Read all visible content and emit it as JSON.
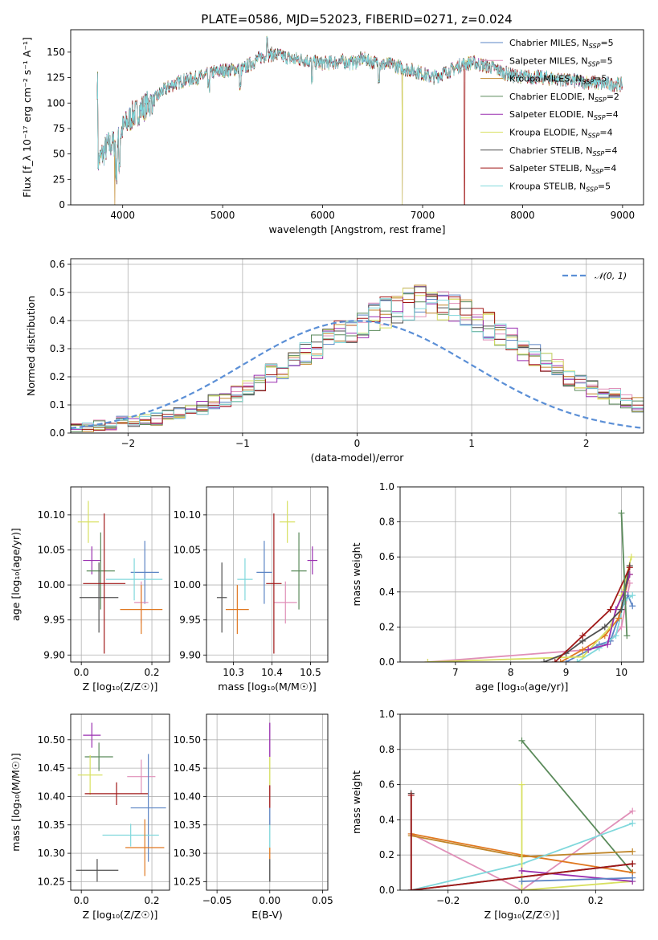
{
  "title": "PLATE=0586, MJD=52023, FIBERID=0271, z=0.024",
  "colors": {
    "Chabrier MILES": "#5b84c4",
    "Salpeter MILES": "#e08fb8",
    "Kroupa MILES": "#c0862a",
    "Chabrier ELODIE": "#5a8a5a",
    "Salpeter ELODIE": "#9a2fb0",
    "Kroupa ELODIE": "#d8e060",
    "Chabrier STELIB": "#505050",
    "Salpeter STELIB": "#a01818",
    "Kroupa STELIB": "#80d8dc",
    "extra_orange": "#e07820",
    "gaussian": "#5b8fd6"
  },
  "chart_data": [
    {
      "id": "spectrum",
      "type": "line",
      "xlabel": "wavelength [Angstrom, rest frame]",
      "ylabel": "Flux [f_λ 10⁻¹⁷ erg cm⁻² s⁻¹ A⁻¹]",
      "xlim": [
        3480,
        9210
      ],
      "ylim": [
        0,
        172
      ],
      "xticks": [
        4000,
        5000,
        6000,
        7000,
        8000,
        9000
      ],
      "yticks": [
        0,
        25,
        50,
        75,
        100,
        125,
        150
      ],
      "legend_position": "top-right",
      "continuum": [
        [
          3750,
          42
        ],
        [
          3850,
          58
        ],
        [
          3950,
          62
        ],
        [
          4000,
          75
        ],
        [
          4100,
          88
        ],
        [
          4200,
          95
        ],
        [
          4300,
          102
        ],
        [
          4400,
          112
        ],
        [
          4500,
          118
        ],
        [
          4600,
          122
        ],
        [
          4800,
          126
        ],
        [
          4900,
          130
        ],
        [
          5000,
          132
        ],
        [
          5100,
          133
        ],
        [
          5200,
          133
        ],
        [
          5300,
          140
        ],
        [
          5400,
          146
        ],
        [
          5500,
          148
        ],
        [
          5600,
          146
        ],
        [
          5700,
          143
        ],
        [
          5800,
          143
        ],
        [
          5900,
          140
        ],
        [
          6000,
          139
        ],
        [
          6100,
          140
        ],
        [
          6200,
          141
        ],
        [
          6300,
          139
        ],
        [
          6400,
          144
        ],
        [
          6500,
          140
        ],
        [
          6600,
          138
        ],
        [
          6700,
          138
        ],
        [
          6800,
          134
        ],
        [
          6900,
          132
        ],
        [
          7000,
          129
        ],
        [
          7100,
          125
        ],
        [
          7200,
          129
        ],
        [
          7300,
          133
        ],
        [
          7400,
          138
        ],
        [
          7500,
          140
        ],
        [
          7600,
          137
        ],
        [
          7700,
          135
        ],
        [
          7800,
          130
        ],
        [
          7900,
          127
        ],
        [
          8000,
          126
        ],
        [
          8200,
          125
        ],
        [
          8400,
          123
        ],
        [
          8600,
          121
        ],
        [
          8800,
          119
        ],
        [
          9000,
          118
        ]
      ],
      "series": [
        {
          "name": "Chabrier MILES, N_SSP=5",
          "label_main": "Chabrier MILES, N",
          "label_sub": "SSP",
          "label_tail": "=5"
        },
        {
          "name": "Salpeter MILES, N_SSP=5",
          "label_main": "Salpeter MILES, N",
          "label_sub": "SSP",
          "label_tail": "=5"
        },
        {
          "name": "Kroupa MILES, N_SSP=5",
          "label_main": "Kroupa MILES, N",
          "label_sub": "SSP",
          "label_tail": "=5"
        },
        {
          "name": "Chabrier ELODIE, N_SSP=2",
          "label_main": "Chabrier ELODIE, N",
          "label_sub": "SSP",
          "label_tail": "=2"
        },
        {
          "name": "Salpeter ELODIE, N_SSP=4",
          "label_main": "Salpeter ELODIE, N",
          "label_sub": "SSP",
          "label_tail": "=4"
        },
        {
          "name": "Kroupa ELODIE, N_SSP=4",
          "label_main": "Kroupa ELODIE, N",
          "label_sub": "SSP",
          "label_tail": "=4"
        },
        {
          "name": "Chabrier STELIB, N_SSP=4",
          "label_main": "Chabrier STELIB, N",
          "label_sub": "SSP",
          "label_tail": "=4"
        },
        {
          "name": "Salpeter STELIB, N_SSP=4",
          "label_main": "Salpeter STELIB, N",
          "label_sub": "SSP",
          "label_tail": "=4"
        },
        {
          "name": "Kroupa STELIB, N_SSP=5",
          "label_main": "Kroupa STELIB, N",
          "label_sub": "SSP",
          "label_tail": "=5"
        }
      ]
    },
    {
      "id": "residuals",
      "type": "histogram",
      "xlabel": "(data-model)/error",
      "ylabel": "Normed distribution",
      "xlim": [
        -2.5,
        2.5
      ],
      "ylim": [
        0,
        0.62
      ],
      "xticks": [
        -2,
        -1,
        0,
        1,
        2
      ],
      "yticks": [
        0.0,
        0.1,
        0.2,
        0.3,
        0.4,
        0.5,
        0.6
      ],
      "grid": true,
      "legend": "𝒩(0, 1)",
      "legend_position": "top-right",
      "bin_width": 0.1,
      "bin_start": -2.5,
      "base": [
        0.02,
        0.02,
        0.03,
        0.03,
        0.04,
        0.04,
        0.05,
        0.05,
        0.06,
        0.07,
        0.08,
        0.09,
        0.11,
        0.12,
        0.14,
        0.16,
        0.18,
        0.21,
        0.23,
        0.26,
        0.28,
        0.31,
        0.33,
        0.35,
        0.37,
        0.39,
        0.41,
        0.43,
        0.44,
        0.46,
        0.47,
        0.46,
        0.45,
        0.44,
        0.42,
        0.4,
        0.38,
        0.36,
        0.33,
        0.3,
        0.28,
        0.25,
        0.23,
        0.2,
        0.18,
        0.16,
        0.14,
        0.13,
        0.11,
        0.1,
        0.09,
        0.08,
        0.07,
        0.06,
        0.05,
        0.05,
        0.04,
        0.04,
        0.03,
        0.03,
        0.03,
        0.03
      ]
    },
    {
      "id": "age-vs-Z",
      "type": "errorbar",
      "xlabel": "Z [log₁₀(Z/Z☉)]",
      "ylabel": "age  [log₁₀(age/yr)]",
      "xlim": [
        -0.03,
        0.25
      ],
      "ylim": [
        9.89,
        10.14
      ],
      "xticks": [
        0.0,
        0.2
      ],
      "yticks": [
        9.9,
        9.95,
        10.0,
        10.05,
        10.1
      ],
      "grid": true,
      "points": [
        {
          "s": "Chabrier MILES",
          "x": 0.18,
          "y": 10.018,
          "ex": 0.04,
          "ey": 0.045
        },
        {
          "s": "Salpeter MILES",
          "x": 0.17,
          "y": 9.975,
          "ex": 0.02,
          "ey": 0.03
        },
        {
          "s": "extra_orange",
          "x": 0.17,
          "y": 9.965,
          "ex": 0.06,
          "ey": 0.035
        },
        {
          "s": "Kroupa STELIB",
          "x": 0.15,
          "y": 10.008,
          "ex": 0.08,
          "ey": 0.03
        },
        {
          "s": "Kroupa ELODIE",
          "x": 0.02,
          "y": 10.09,
          "ex": 0.03,
          "ey": 0.03
        },
        {
          "s": "Salpeter ELODIE",
          "x": 0.03,
          "y": 10.035,
          "ex": 0.025,
          "ey": 0.02
        },
        {
          "s": "Chabrier ELODIE",
          "x": 0.055,
          "y": 10.02,
          "ex": 0.04,
          "ey": 0.055
        },
        {
          "s": "Chabrier STELIB",
          "x": 0.05,
          "y": 9.982,
          "ex": 0.055,
          "ey": 0.05
        },
        {
          "s": "Salpeter STELIB",
          "x": 0.065,
          "y": 10.002,
          "ex": 0.06,
          "ey": 0.1
        }
      ]
    },
    {
      "id": "age-vs-mass",
      "type": "errorbar",
      "xlabel": "mass [log₁₀(M/M☉)]",
      "ylabel": "",
      "xlim": [
        10.23,
        10.545
      ],
      "ylim": [
        9.89,
        10.14
      ],
      "xticks": [
        10.3,
        10.4,
        10.5
      ],
      "yticks": [
        9.9,
        9.95,
        10.0,
        10.05,
        10.1
      ],
      "grid": true,
      "points": [
        {
          "s": "Chabrier STELIB",
          "x": 10.27,
          "y": 9.982,
          "ex": 0.013,
          "ey": 0.05
        },
        {
          "s": "extra_orange",
          "x": 10.31,
          "y": 9.965,
          "ex": 0.03,
          "ey": 0.035
        },
        {
          "s": "Kroupa STELIB",
          "x": 10.33,
          "y": 10.008,
          "ex": 0.02,
          "ey": 0.03
        },
        {
          "s": "Chabrier MILES",
          "x": 10.38,
          "y": 10.018,
          "ex": 0.02,
          "ey": 0.045
        },
        {
          "s": "Salpeter MILES",
          "x": 10.435,
          "y": 9.975,
          "ex": 0.03,
          "ey": 0.03
        },
        {
          "s": "Salpeter STELIB",
          "x": 10.405,
          "y": 10.002,
          "ex": 0.02,
          "ey": 0.1
        },
        {
          "s": "Kroupa ELODIE",
          "x": 10.44,
          "y": 10.09,
          "ex": 0.02,
          "ey": 0.03
        },
        {
          "s": "Chabrier ELODIE",
          "x": 10.47,
          "y": 10.02,
          "ex": 0.02,
          "ey": 0.055
        },
        {
          "s": "Salpeter ELODIE",
          "x": 10.505,
          "y": 10.035,
          "ex": 0.013,
          "ey": 0.02
        }
      ]
    },
    {
      "id": "weight-vs-age",
      "type": "line",
      "xlabel": "age  [log₁₀(age/yr)]",
      "ylabel": "mass weight",
      "xlim": [
        6.0,
        10.4
      ],
      "ylim": [
        0,
        1.0
      ],
      "xticks": [
        7,
        8,
        9,
        10
      ],
      "yticks": [
        0.0,
        0.2,
        0.4,
        0.6,
        0.8,
        1.0
      ],
      "grid": true,
      "series": [
        {
          "s": "Salpeter MILES",
          "pts": [
            [
              6.5,
              0.0
            ],
            [
              9.4,
              0.07
            ],
            [
              9.8,
              0.12
            ],
            [
              10.0,
              0.2
            ],
            [
              10.15,
              0.45
            ]
          ]
        },
        {
          "s": "Chabrier MILES",
          "pts": [
            [
              9.0,
              0.0
            ],
            [
              9.6,
              0.1
            ],
            [
              9.8,
              0.12
            ],
            [
              10.0,
              0.3
            ],
            [
              10.12,
              0.38
            ],
            [
              10.2,
              0.32
            ]
          ]
        },
        {
          "s": "Kroupa STELIB",
          "pts": [
            [
              9.2,
              0.0
            ],
            [
              9.6,
              0.08
            ],
            [
              9.9,
              0.15
            ],
            [
              10.05,
              0.35
            ],
            [
              10.2,
              0.38
            ]
          ]
        },
        {
          "s": "extra_orange",
          "pts": [
            [
              8.9,
              0.0
            ],
            [
              9.3,
              0.07
            ],
            [
              9.7,
              0.15
            ],
            [
              9.95,
              0.25
            ],
            [
              10.15,
              0.5
            ]
          ]
        },
        {
          "s": "Kroupa ELODIE",
          "pts": [
            [
              6.5,
              0.0
            ],
            [
              9.3,
              0.03
            ],
            [
              9.8,
              0.2
            ],
            [
              10.0,
              0.38
            ],
            [
              10.18,
              0.6
            ]
          ]
        },
        {
          "s": "Salpeter ELODIE",
          "pts": [
            [
              9.4,
              0.07
            ],
            [
              9.75,
              0.1
            ],
            [
              9.9,
              0.3
            ],
            [
              10.05,
              0.4
            ],
            [
              10.15,
              0.5
            ]
          ]
        },
        {
          "s": "Chabrier STELIB",
          "pts": [
            [
              8.6,
              0.0
            ],
            [
              9.0,
              0.05
            ],
            [
              9.3,
              0.12
            ],
            [
              9.7,
              0.2
            ],
            [
              10.0,
              0.3
            ],
            [
              10.15,
              0.55
            ]
          ]
        },
        {
          "s": "Salpeter STELIB",
          "pts": [
            [
              8.8,
              0.0
            ],
            [
              9.3,
              0.15
            ],
            [
              9.8,
              0.3
            ],
            [
              10.15,
              0.54
            ]
          ]
        },
        {
          "s": "Chabrier ELODIE",
          "pts": [
            [
              10.0,
              0.85
            ],
            [
              10.1,
              0.15
            ]
          ]
        }
      ]
    },
    {
      "id": "mass-vs-Z",
      "type": "errorbar",
      "xlabel": "Z [log₁₀(Z/Z☉)]",
      "ylabel": "mass [log₁₀(M/M☉)]",
      "xlim": [
        -0.03,
        0.25
      ],
      "ylim": [
        10.235,
        10.545
      ],
      "xticks": [
        0.0,
        0.2
      ],
      "yticks": [
        10.25,
        10.3,
        10.35,
        10.4,
        10.45,
        10.5
      ],
      "grid": true,
      "points": [
        {
          "s": "Salpeter ELODIE",
          "x": 0.03,
          "y": 10.508,
          "ex": 0.025,
          "ey": 0.022
        },
        {
          "s": "Chabrier ELODIE",
          "x": 0.05,
          "y": 10.47,
          "ex": 0.04,
          "ey": 0.025
        },
        {
          "s": "Kroupa ELODIE",
          "x": 0.025,
          "y": 10.438,
          "ex": 0.035,
          "ey": 0.035
        },
        {
          "s": "Salpeter MILES",
          "x": 0.17,
          "y": 10.435,
          "ex": 0.04,
          "ey": 0.03
        },
        {
          "s": "Salpeter STELIB",
          "x": 0.1,
          "y": 10.405,
          "ex": 0.09,
          "ey": 0.02
        },
        {
          "s": "Chabrier MILES",
          "x": 0.19,
          "y": 10.38,
          "ex": 0.05,
          "ey": 0.095
        },
        {
          "s": "Kroupa STELIB",
          "x": 0.14,
          "y": 10.332,
          "ex": 0.08,
          "ey": 0.02
        },
        {
          "s": "extra_orange",
          "x": 0.18,
          "y": 10.31,
          "ex": 0.055,
          "ey": 0.05
        },
        {
          "s": "Chabrier STELIB",
          "x": 0.045,
          "y": 10.27,
          "ex": 0.06,
          "ey": 0.02
        }
      ]
    },
    {
      "id": "mass-vs-ebv",
      "type": "errorbar",
      "xlabel": "E(B-V)",
      "ylabel": "",
      "xlim": [
        -0.06,
        0.055
      ],
      "ylim": [
        10.235,
        10.545
      ],
      "xticks": [
        -0.05,
        0.0,
        0.05
      ],
      "yticks": [
        10.25,
        10.3,
        10.35,
        10.4,
        10.45,
        10.5
      ],
      "grid": true,
      "segments": [
        {
          "s": "Chabrier STELIB",
          "y0": 10.25,
          "y1": 10.29
        },
        {
          "s": "extra_orange",
          "y0": 10.29,
          "y1": 10.31
        },
        {
          "s": "Kroupa STELIB",
          "y0": 10.31,
          "y1": 10.35
        },
        {
          "s": "Chabrier MILES",
          "y0": 10.35,
          "y1": 10.38
        },
        {
          "s": "Salpeter STELIB",
          "y0": 10.38,
          "y1": 10.42
        },
        {
          "s": "Kroupa ELODIE",
          "y0": 10.42,
          "y1": 10.47
        },
        {
          "s": "Salpeter ELODIE",
          "y0": 10.47,
          "y1": 10.53
        }
      ]
    },
    {
      "id": "weight-vs-Z",
      "type": "line",
      "xlabel": "Z [log₁₀(Z/Z☉)]",
      "ylabel": "mass weight",
      "xlim": [
        -0.33,
        0.33
      ],
      "ylim": [
        0,
        1.0
      ],
      "xticks": [
        -0.2,
        0.0,
        0.2
      ],
      "yticks": [
        0.0,
        0.2,
        0.4,
        0.6,
        0.8,
        1.0
      ],
      "grid": true,
      "series": [
        {
          "s": "Chabrier ELODIE",
          "pts": [
            [
              0.0,
              0.85
            ],
            [
              0.3,
              0.1
            ]
          ]
        },
        {
          "s": "Salpeter MILES",
          "pts": [
            [
              -0.3,
              0.32
            ],
            [
              0.0,
              0.0
            ],
            [
              0.3,
              0.45
            ]
          ]
        },
        {
          "s": "extra_orange",
          "pts": [
            [
              -0.3,
              0.32
            ],
            [
              0.0,
              0.2
            ],
            [
              0.3,
              0.1
            ]
          ]
        },
        {
          "s": "Kroupa MILES",
          "pts": [
            [
              -0.3,
              0.31
            ],
            [
              0.0,
              0.19
            ],
            [
              0.3,
              0.22
            ]
          ]
        },
        {
          "s": "Kroupa STELIB",
          "pts": [
            [
              -0.3,
              0.0
            ],
            [
              0.0,
              0.15
            ],
            [
              0.3,
              0.38
            ]
          ]
        },
        {
          "s": "Kroupa ELODIE",
          "pts": [
            [
              0.0,
              0.6
            ],
            [
              0.0,
              0.0
            ],
            [
              0.3,
              0.05
            ]
          ]
        },
        {
          "s": "Salpeter ELODIE",
          "pts": [
            [
              0.0,
              0.11
            ],
            [
              0.3,
              0.05
            ]
          ]
        },
        {
          "s": "Chabrier MILES",
          "pts": [
            [
              0.0,
              0.05
            ],
            [
              0.3,
              0.07
            ]
          ]
        },
        {
          "s": "Chabrier STELIB",
          "pts": [
            [
              -0.3,
              0.55
            ],
            [
              -0.3,
              0.0
            ],
            [
              0.3,
              0.15
            ]
          ]
        },
        {
          "s": "Salpeter STELIB",
          "pts": [
            [
              -0.3,
              0.54
            ],
            [
              -0.3,
              0.0
            ],
            [
              0.3,
              0.15
            ]
          ]
        }
      ]
    }
  ]
}
